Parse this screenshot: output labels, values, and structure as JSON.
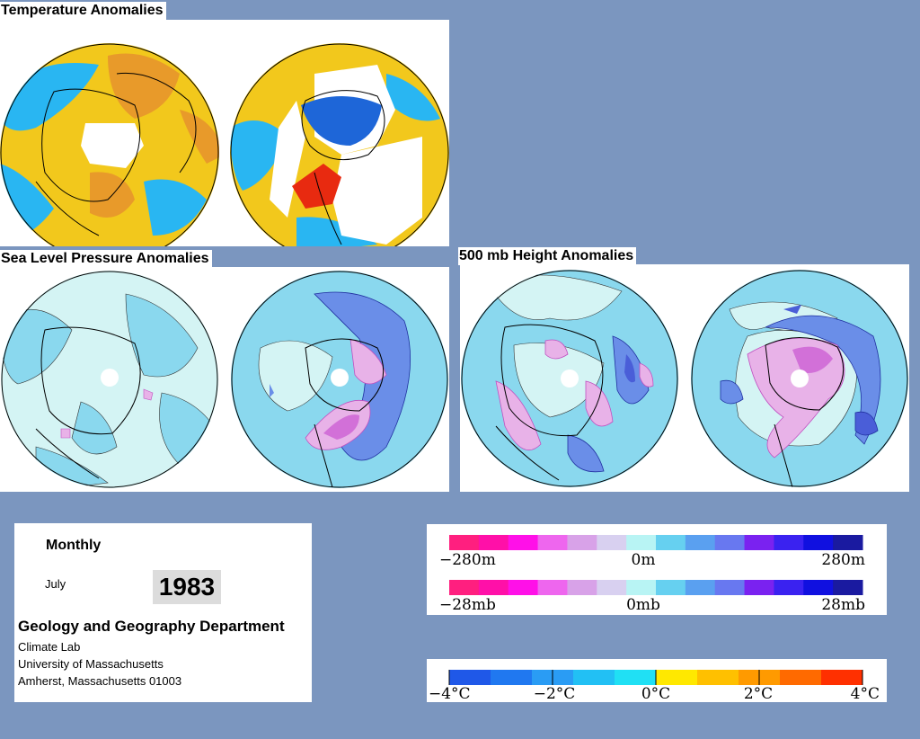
{
  "titles": {
    "temperature": "Temperature Anomalies",
    "slp": "Sea Level Pressure Anomalies",
    "height": "500 mb Height Anomalies"
  },
  "info": {
    "period": "Monthly",
    "month": "July",
    "year": "1983",
    "department": "Geology and Geography Department",
    "lab": "Climate Lab",
    "university": "University of Massachusetts",
    "city": "Amherst, Massachusetts 01003"
  },
  "legend_height": {
    "min_label": "−280m",
    "mid_label": "0m",
    "max_label": "280m",
    "colors": [
      "#ff1f7f",
      "#ff10a8",
      "#ff10e8",
      "#ee66ee",
      "#d8a2e8",
      "#d8d0f0",
      "#b8f4f4",
      "#66d0f0",
      "#5aa0f0",
      "#6878f0",
      "#7a22f0",
      "#3a22f0",
      "#1010e0",
      "#1a1aa0"
    ]
  },
  "legend_slp": {
    "min_label": "−28mb",
    "mid_label": "0mb",
    "max_label": "28mb",
    "colors": [
      "#ff1f7f",
      "#ff10a8",
      "#ff10e8",
      "#ee66ee",
      "#d8a2e8",
      "#d8d0f0",
      "#b8f4f4",
      "#66d0f0",
      "#5aa0f0",
      "#6878f0",
      "#7a22f0",
      "#3a22f0",
      "#1010e0",
      "#1a1aa0"
    ]
  },
  "legend_temp": {
    "min_label": "−4°C",
    "m2_label": "−2°C",
    "zero_label": "0°C",
    "p2_label": "2°C",
    "max_label": "4°C",
    "colors": [
      "#1f58e8",
      "#2078f0",
      "#2a9cf4",
      "#22c0f4",
      "#20e0f4",
      "#ffe800",
      "#ffc000",
      "#ff9a00",
      "#ff6a00",
      "#ff3000"
    ]
  },
  "map_colors": {
    "temp_yellow": "#f2c81c",
    "temp_orange": "#e89a2a",
    "temp_cyan": "#29b6f2",
    "temp_blue": "#1e66d8",
    "temp_red": "#e82a10",
    "pale": "#d4f4f4",
    "cyan": "#8ad8ee",
    "blue": "#6a8ee8",
    "pink": "#e8b2e8",
    "magenta": "#d270d8"
  }
}
